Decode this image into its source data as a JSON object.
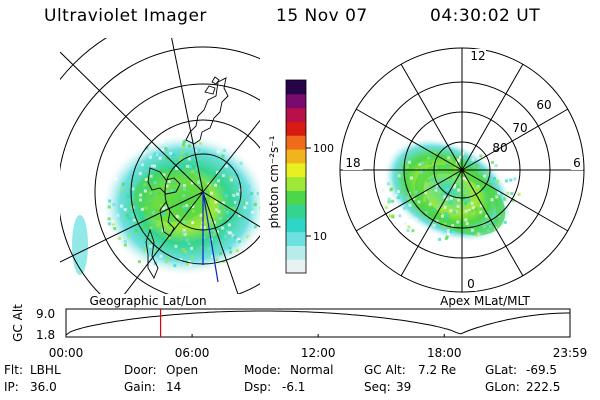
{
  "header": {
    "instrument": "Ultraviolet Imager",
    "date": "15 Nov 07",
    "time": "04:30:02 UT"
  },
  "colorbar": {
    "unit_label": "photon cm⁻²s⁻¹",
    "ticks": [
      {
        "value": 100,
        "label": "100"
      },
      {
        "value": 10,
        "label": "10"
      }
    ],
    "colors": [
      "#e9f2f2",
      "#b8ecec",
      "#6fe0e0",
      "#2fd6c8",
      "#34d490",
      "#4ed64a",
      "#9ee83a",
      "#e8f020",
      "#f2b41c",
      "#ef6a1a",
      "#d81a14",
      "#b8104a",
      "#7a0a6e",
      "#26044a"
    ],
    "scale": "log"
  },
  "left_panel": {
    "caption": "Geographic Lat/Lon",
    "grid_color": "#000000",
    "trace_color": "#1020c0"
  },
  "right_panel": {
    "caption": "Apex MLat/MLT",
    "mlt_labels": {
      "top": "12",
      "left": "18",
      "right": "6",
      "bottom": "0"
    },
    "lat_labels": [
      "60",
      "70",
      "80"
    ]
  },
  "timeline": {
    "axis_label": "GC Alt",
    "y_ticks": [
      "9.0",
      "1.8"
    ],
    "x_ticks": [
      "00:00",
      "06:00",
      "12:00",
      "18:00",
      "23:59"
    ],
    "marker_time": "04:30",
    "marker_color": "#dd0000"
  },
  "info": {
    "row1": [
      {
        "label": "Flt:",
        "value": "LBHL"
      },
      {
        "label": "Door:",
        "value": "Open"
      },
      {
        "label": "Mode:",
        "value": "Normal"
      },
      {
        "label": "GC Alt:",
        "value": "7.2 Re"
      },
      {
        "label": "GLat:",
        "value": "-69.5"
      }
    ],
    "row2": [
      {
        "label": "IP:",
        "value": "36.0"
      },
      {
        "label": "Gain:",
        "value": "14"
      },
      {
        "label": "Dsp:",
        "value": "-6.1"
      },
      {
        "label": "Seq:",
        "value": "39"
      },
      {
        "label": "GLon:",
        "value": "222.5"
      }
    ]
  }
}
